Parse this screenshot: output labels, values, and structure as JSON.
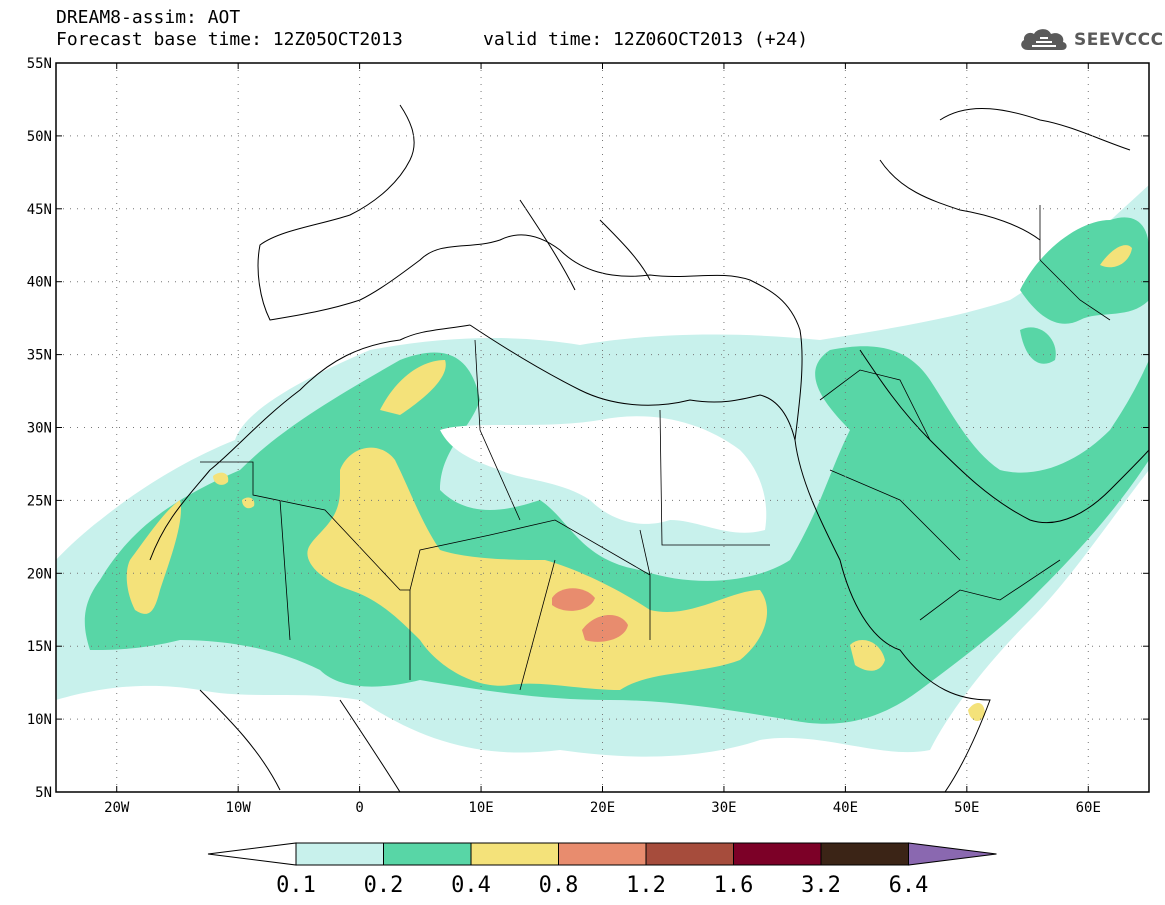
{
  "header": {
    "line1": "DREAM8-assim: AOT",
    "line2": "Forecast base time: 12Z05OCT2013",
    "valid": "valid time: 12Z06OCT2013 (+24)"
  },
  "logo": {
    "text": "SEEVCCC",
    "icon": "cloud-icon"
  },
  "map": {
    "lon_range": [
      -25,
      65
    ],
    "lat_range": [
      5,
      55
    ],
    "lat_ticks": [
      "5N",
      "10N",
      "15N",
      "20N",
      "25N",
      "30N",
      "35N",
      "40N",
      "45N",
      "50N",
      "55N"
    ],
    "lon_ticks": [
      "20W",
      "10W",
      "0",
      "10E",
      "20E",
      "30E",
      "40E",
      "50E",
      "60E"
    ],
    "grid": "dotted"
  },
  "colorbar": {
    "levels": [
      "0.1",
      "0.2",
      "0.4",
      "0.8",
      "1.2",
      "1.6",
      "3.2",
      "6.4"
    ],
    "colors": [
      "#ffffff",
      "#c8f1ec",
      "#58d6a6",
      "#f4e27a",
      "#e88c6e",
      "#a64c3c",
      "#7c0027",
      "#3b2416",
      "#8a68b0"
    ]
  }
}
